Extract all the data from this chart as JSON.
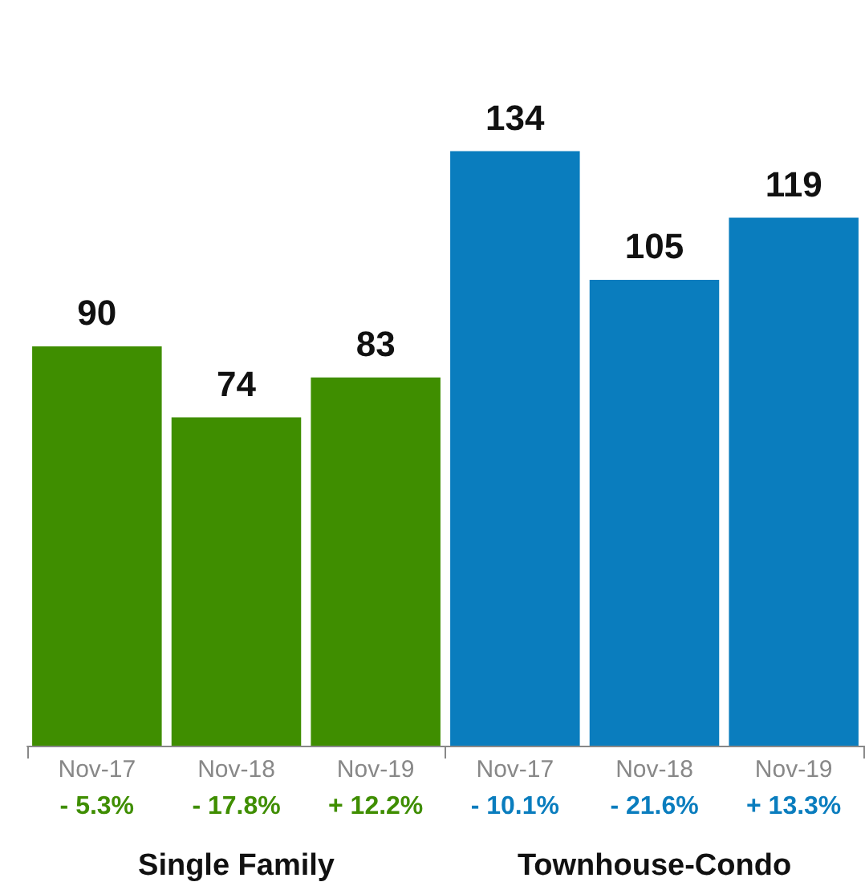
{
  "chart_data": {
    "type": "bar",
    "categories": [
      "Nov-17\n- 5.3%",
      "Nov-18\n- 17.8%",
      "Nov-19\n+ 12.2%",
      "Nov-17\n- 10.1%",
      "Nov-18\n- 21.6%",
      "Nov-19\n+ 13.3%"
    ],
    "series": [
      {
        "color": "#3f8e00",
        "values": [
          90,
          74,
          83,
          null,
          null,
          null
        ]
      },
      {
        "color": "#0a7dbe",
        "values": [
          null,
          null,
          null,
          134,
          105,
          119
        ]
      }
    ],
    "annotations": [
      "Single Family",
      "Townhouse-Condo"
    ],
    "data_labels": true
  }
}
